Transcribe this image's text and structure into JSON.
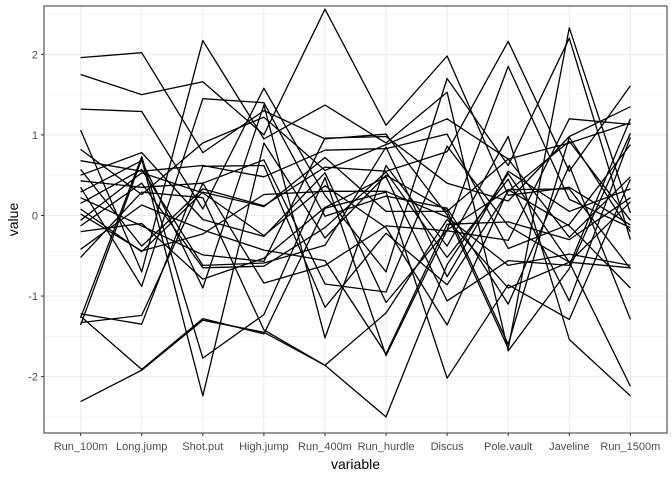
{
  "chart_data": {
    "type": "line",
    "xlabel": "variable",
    "ylabel": "value",
    "categories": [
      "Run_100m",
      "Long.jump",
      "Shot.put",
      "High.jump",
      "Run_400m",
      "Run_hurdle",
      "Discus",
      "Pole.vault",
      "Javeline",
      "Run_1500m"
    ],
    "ylim": [
      -2.7,
      2.6
    ],
    "yticks": [
      -2,
      -1,
      0,
      1,
      2
    ],
    "ytick_labels": [
      "-2",
      "-1",
      "0",
      "1",
      "2"
    ],
    "grid": true,
    "line_color": "#000000",
    "series": [
      {
        "values": [
          1.96,
          2.02,
          0.78,
          1.3,
          0.95,
          1.01,
          0.01,
          -1.65,
          2.33,
          0.03
        ]
      },
      {
        "values": [
          1.75,
          1.5,
          1.66,
          1.0,
          2.56,
          1.12,
          1.98,
          0.25,
          0.35,
          -0.12
        ]
      },
      {
        "values": [
          1.32,
          1.29,
          0.08,
          1.58,
          0.25,
          -0.7,
          1.7,
          0.62,
          2.2,
          -0.3
        ]
      },
      {
        "values": [
          1.06,
          -0.7,
          2.17,
          0.95,
          1.37,
          0.9,
          1.53,
          -1.68,
          -0.66,
          1.02
        ]
      },
      {
        "values": [
          0.82,
          0.26,
          0.9,
          1.22,
          0.56,
          0.88,
          1.2,
          0.7,
          0.9,
          1.15
        ]
      },
      {
        "values": [
          0.68,
          0.55,
          0.62,
          0.48,
          0.81,
          0.83,
          1.01,
          -0.41,
          -0.11,
          0.88
        ]
      },
      {
        "values": [
          0.57,
          -0.38,
          0.33,
          0.12,
          0.6,
          0.55,
          0.79,
          2.16,
          0.55,
          1.61
        ]
      },
      {
        "values": [
          0.5,
          0.78,
          -0.05,
          -0.26,
          0.53,
          -1.08,
          -0.18,
          1.85,
          0.2,
          -0.15
        ]
      },
      {
        "values": [
          0.43,
          0.35,
          0.4,
          0.69,
          -0.85,
          -0.95,
          0.86,
          -0.13,
          -0.58,
          -0.65
        ]
      },
      {
        "values": [
          0.35,
          -0.88,
          1.45,
          1.4,
          -0.01,
          0.24,
          0.09,
          -1.1,
          0.62,
          -1.29
        ]
      },
      {
        "values": [
          0.29,
          0.68,
          -0.9,
          1.37,
          -1.52,
          0.62,
          -0.38,
          0.98,
          -1.54,
          -2.24
        ]
      },
      {
        "values": [
          0.22,
          -0.13,
          -0.49,
          -0.57,
          0.96,
          0.98,
          0.4,
          0.18,
          0.98,
          1.35
        ]
      },
      {
        "values": [
          0.15,
          0.57,
          -0.62,
          -0.59,
          -0.37,
          0.85,
          -0.76,
          0.55,
          0.05,
          0.33
        ]
      },
      {
        "values": [
          0.08,
          -0.45,
          0.29,
          0.11,
          0.72,
          0.05,
          0.05,
          0.7,
          -0.27,
          0.48
        ]
      },
      {
        "values": [
          0.02,
          -0.44,
          -0.23,
          0.26,
          0.3,
          0.3,
          -0.02,
          -0.62,
          -0.48,
          -0.62
        ]
      },
      {
        "values": [
          -0.06,
          0.53,
          0.28,
          -0.25,
          0.37,
          -0.15,
          -1.36,
          0.32,
          0.33,
          -0.66
        ]
      },
      {
        "values": [
          -0.13,
          0.4,
          -0.65,
          -0.63,
          -0.15,
          0.54,
          -0.52,
          0.45,
          -1.06,
          0.97
        ]
      },
      {
        "values": [
          -0.2,
          -0.1,
          -0.79,
          -0.53,
          0.1,
          0.48,
          -1.06,
          -0.56,
          -0.62,
          1.2
        ]
      },
      {
        "values": [
          -0.42,
          0.13,
          -0.18,
          -0.43,
          -0.56,
          -1.72,
          -0.11,
          -0.08,
          -0.3,
          0.22
        ]
      },
      {
        "values": [
          -0.52,
          0.29,
          0.22,
          -1.42,
          -1.86,
          -1.21,
          -0.05,
          -0.9,
          -0.58,
          0.17
        ]
      },
      {
        "values": [
          -1.22,
          -1.35,
          0.61,
          0.62,
          -1.14,
          -0.22,
          -0.86,
          0.3,
          0.92,
          -0.06
        ]
      },
      {
        "values": [
          -1.25,
          -1.91,
          -1.28,
          -1.47,
          0.09,
          0.29,
          -2.02,
          -0.86,
          -1.29,
          0.45
        ]
      },
      {
        "values": [
          -1.27,
          0.73,
          -1.77,
          -1.23,
          0.47,
          -1.74,
          -0.18,
          0.32,
          -0.13,
          -0.9
        ]
      },
      {
        "values": [
          -1.33,
          -1.24,
          0.4,
          -0.84,
          -0.62,
          -0.13,
          -0.19,
          -0.31,
          1.2,
          1.13
        ]
      },
      {
        "values": [
          -1.36,
          0.7,
          -2.24,
          0.9,
          -0.28,
          0.5,
          0.06,
          -1.6,
          0.97,
          -0.2
        ]
      },
      {
        "values": [
          -2.31,
          -1.92,
          -1.3,
          -1.45,
          -1.86,
          -2.5,
          -0.61,
          0.52,
          -0.58,
          -2.12
        ]
      }
    ]
  }
}
